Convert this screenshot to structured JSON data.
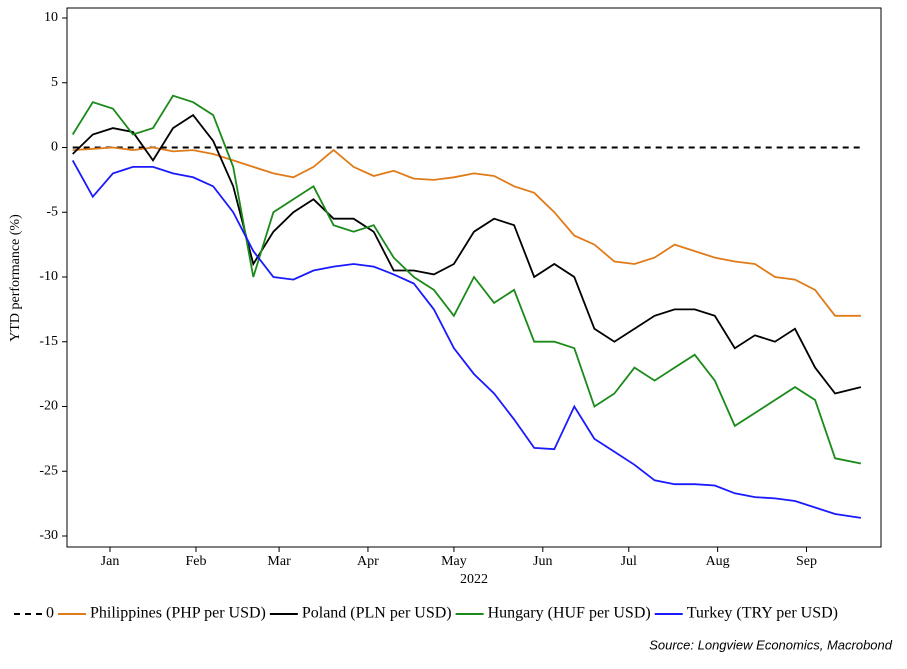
{
  "chart_data": {
    "type": "line",
    "ylabel": "YTD performance (%)",
    "xlabel": "2022",
    "source": "Source: Longview Economics, Macrobond",
    "x": [
      3,
      10,
      17,
      24,
      31,
      38,
      45,
      52,
      59,
      66,
      73,
      80,
      87,
      94,
      101,
      108,
      115,
      122,
      129,
      136,
      143,
      150,
      157,
      164,
      171,
      178,
      185,
      192,
      199,
      206,
      213,
      220,
      227,
      234,
      241,
      248,
      255,
      262,
      269,
      278
    ],
    "xlim": [
      1,
      285
    ],
    "xticks": [
      {
        "value": 16,
        "label": "Jan"
      },
      {
        "value": 46,
        "label": "Feb"
      },
      {
        "value": 75,
        "label": "Mar"
      },
      {
        "value": 106,
        "label": "Apr"
      },
      {
        "value": 136,
        "label": "May"
      },
      {
        "value": 167,
        "label": "Jun"
      },
      {
        "value": 197,
        "label": "Jul"
      },
      {
        "value": 228,
        "label": "Aug"
      },
      {
        "value": 259,
        "label": "Sep"
      }
    ],
    "ylim": [
      -30.85,
      10
    ],
    "yticks": [
      10,
      5,
      0,
      -5,
      -10,
      -15,
      -20,
      -25,
      -30
    ],
    "legend": "bottom",
    "series": [
      {
        "name": "0",
        "color": "#000000",
        "dash": true,
        "values": [
          0,
          0,
          0,
          0,
          0,
          0,
          0,
          0,
          0,
          0,
          0,
          0,
          0,
          0,
          0,
          0,
          0,
          0,
          0,
          0,
          0,
          0,
          0,
          0,
          0,
          0,
          0,
          0,
          0,
          0,
          0,
          0,
          0,
          0,
          0,
          0,
          0,
          0,
          0,
          0
        ]
      },
      {
        "name": "Philippines (PHP per USD)",
        "color": "#e07b1a",
        "values": [
          -0.2,
          -0.1,
          0,
          -0.2,
          0,
          -0.3,
          -0.2,
          -0.5,
          -1,
          -1.5,
          -2,
          -2.3,
          -1.5,
          -0.2,
          -1.5,
          -2.2,
          -1.8,
          -2.4,
          -2.5,
          -2.3,
          -2,
          -2.2,
          -3,
          -3.5,
          -5,
          -6.8,
          -7.5,
          -8.8,
          -9,
          -8.5,
          -7.5,
          -8,
          -8.5,
          -8.8,
          -9,
          -10,
          -10.2,
          -11,
          -13,
          -13
        ]
      },
      {
        "name": "Poland (PLN per USD)",
        "color": "#000000",
        "values": [
          -0.5,
          1,
          1.5,
          1.2,
          -1,
          1.5,
          2.5,
          0.5,
          -3,
          -9,
          -6.5,
          -5,
          -4,
          -5.5,
          -5.5,
          -6.5,
          -9.5,
          -9.5,
          -9.8,
          -9,
          -6.5,
          -5.5,
          -6,
          -10,
          -9,
          -10,
          -14,
          -15,
          -14,
          -13,
          -12.5,
          -12.5,
          -13,
          -15.5,
          -14.5,
          -15,
          -14,
          -17,
          -19,
          -18.5
        ]
      },
      {
        "name": "Hungary (HUF per USD)",
        "color": "#1a8a1a",
        "values": [
          1,
          3.5,
          3,
          1,
          1.5,
          4,
          3.5,
          2.5,
          -1.5,
          -10,
          -5,
          -4,
          -3,
          -6,
          -6.5,
          -6,
          -8.5,
          -10,
          -11,
          -13,
          -10,
          -12,
          -11,
          -15,
          -15,
          -15.5,
          -20,
          -19,
          -17,
          -18,
          -17,
          -16,
          -18,
          -21.5,
          -20.5,
          -19.5,
          -18.5,
          -19.5,
          -24,
          -24.4
        ]
      },
      {
        "name": "Turkey (TRY per USD)",
        "color": "#1a1aff",
        "values": [
          -1,
          -3.8,
          -2,
          -1.5,
          -1.5,
          -2,
          -2.3,
          -3,
          -5,
          -8,
          -10,
          -10.2,
          -9.5,
          -9.2,
          -9,
          -9.2,
          -9.8,
          -10.5,
          -12.5,
          -15.5,
          -17.5,
          -19,
          -21,
          -23.2,
          -23.3,
          -20,
          -22.5,
          -23.5,
          -24.5,
          -25.7,
          -26,
          -26,
          -26.1,
          -26.7,
          -27,
          -27.1,
          -27.3,
          -27.8,
          -28.3,
          -28.6
        ]
      }
    ]
  }
}
